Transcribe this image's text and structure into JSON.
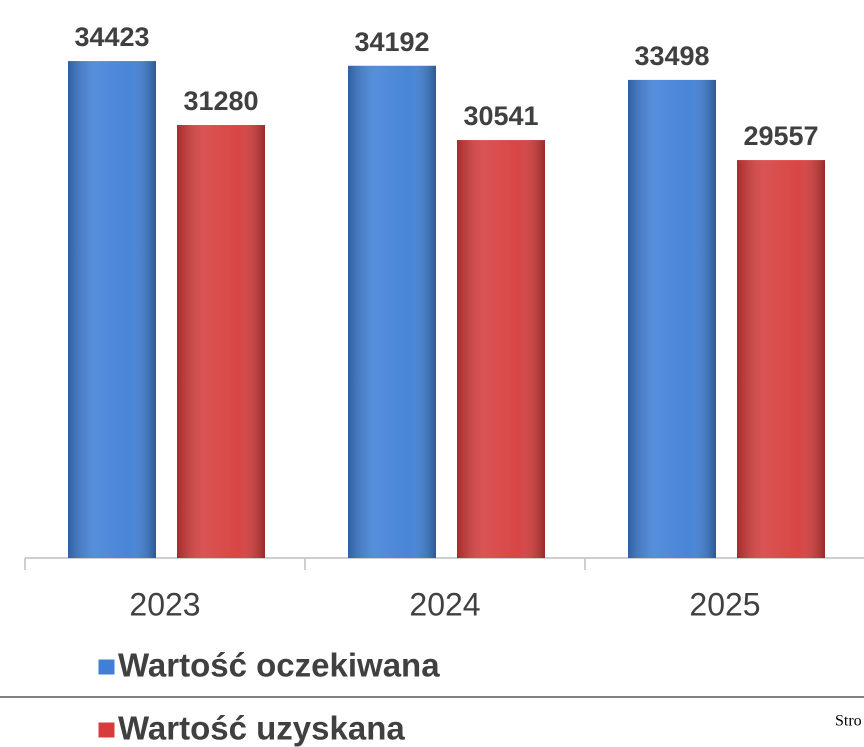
{
  "chart_data": {
    "type": "bar",
    "categories": [
      "2023",
      "2024",
      "2025"
    ],
    "series": [
      {
        "name": "Wartość oczekiwana",
        "color": "#3f7fd6",
        "values": [
          34423,
          34192,
          33498
        ]
      },
      {
        "name": "Wartość uzyskana",
        "color": "#d63c3c",
        "values": [
          31280,
          30541,
          29557
        ]
      }
    ],
    "ylim": [
      10000,
      36000
    ],
    "legend": "bottom"
  },
  "footer_text": "Stro"
}
